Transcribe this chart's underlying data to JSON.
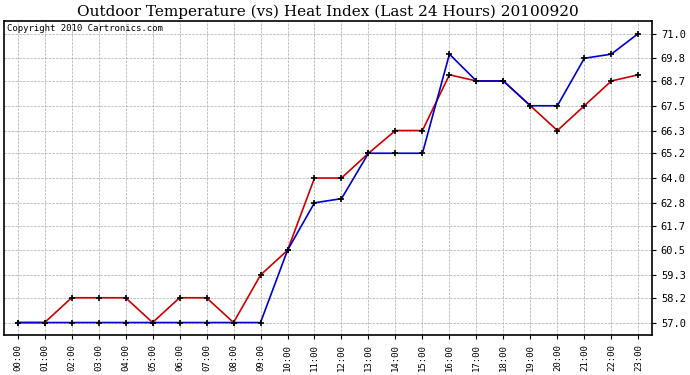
{
  "title": "Outdoor Temperature (vs) Heat Index (Last 24 Hours) 20100920",
  "copyright": "Copyright 2010 Cartronics.com",
  "x_labels": [
    "00:00",
    "01:00",
    "02:00",
    "03:00",
    "04:00",
    "05:00",
    "06:00",
    "07:00",
    "08:00",
    "09:00",
    "10:00",
    "11:00",
    "12:00",
    "13:00",
    "14:00",
    "15:00",
    "16:00",
    "17:00",
    "18:00",
    "19:00",
    "20:00",
    "21:00",
    "22:00",
    "23:00"
  ],
  "y_ticks": [
    57.0,
    58.2,
    59.3,
    60.5,
    61.7,
    62.8,
    64.0,
    65.2,
    66.3,
    67.5,
    68.7,
    69.8,
    71.0
  ],
  "ylim": [
    56.4,
    71.6
  ],
  "red_data": [
    57.0,
    57.0,
    58.2,
    58.2,
    58.2,
    57.0,
    58.2,
    58.2,
    57.0,
    59.3,
    60.5,
    64.0,
    64.0,
    65.2,
    66.3,
    66.3,
    69.0,
    68.7,
    68.7,
    67.5,
    66.3,
    67.5,
    68.7,
    69.0
  ],
  "blue_data": [
    57.0,
    57.0,
    57.0,
    57.0,
    57.0,
    57.0,
    57.0,
    57.0,
    57.0,
    57.0,
    60.5,
    62.8,
    63.0,
    65.2,
    65.2,
    65.2,
    70.0,
    68.7,
    68.7,
    67.5,
    67.5,
    69.8,
    70.0,
    71.0
  ],
  "red_color": "#cc0000",
  "blue_color": "#0000cc",
  "bg_color": "#ffffff",
  "plot_bg_color": "#ffffff",
  "grid_color": "#aaaaaa",
  "title_fontsize": 11,
  "copyright_fontsize": 6.5,
  "tick_fontsize": 7.5,
  "x_tick_fontsize": 6.5
}
